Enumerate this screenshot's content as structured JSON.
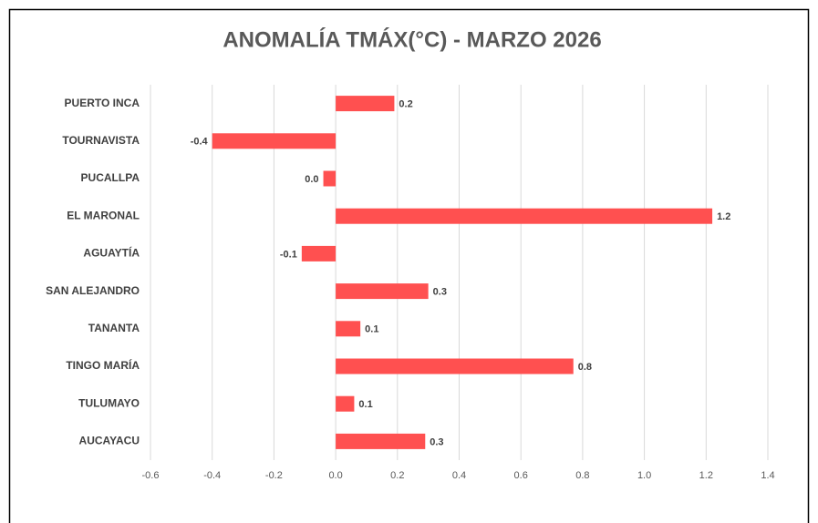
{
  "chart_data": {
    "type": "hbar",
    "title": "ANOMALÍA TMÁX(°C) - MARZO 2026",
    "categories": [
      "PUERTO INCA",
      "TOURNAVISTA",
      "PUCALLPA",
      "EL MARONAL",
      "AGUAYTÍA",
      "SAN ALEJANDRO",
      "TANANTA",
      "TINGO MARÍA",
      "TULUMAYO",
      "AUCAYACU"
    ],
    "values": [
      0.19,
      -0.4,
      -0.04,
      1.22,
      -0.11,
      0.3,
      0.08,
      0.77,
      0.06,
      0.29
    ],
    "value_labels": [
      "0.2",
      "-0.4",
      "0.0",
      "1.2",
      "-0.1",
      "0.3",
      "0.1",
      "0.8",
      "0.1",
      "0.3"
    ],
    "color": "#ff5050",
    "xlim": [
      -0.6,
      1.4
    ],
    "xticks": [
      -0.6,
      -0.4,
      -0.2,
      {
        "value": 0,
        "label": "0.0"
      },
      0.2,
      0.4,
      0.6,
      0.8,
      {
        "value": 1,
        "label": "1.0"
      },
      1.2,
      1.4
    ],
    "grid": true
  }
}
